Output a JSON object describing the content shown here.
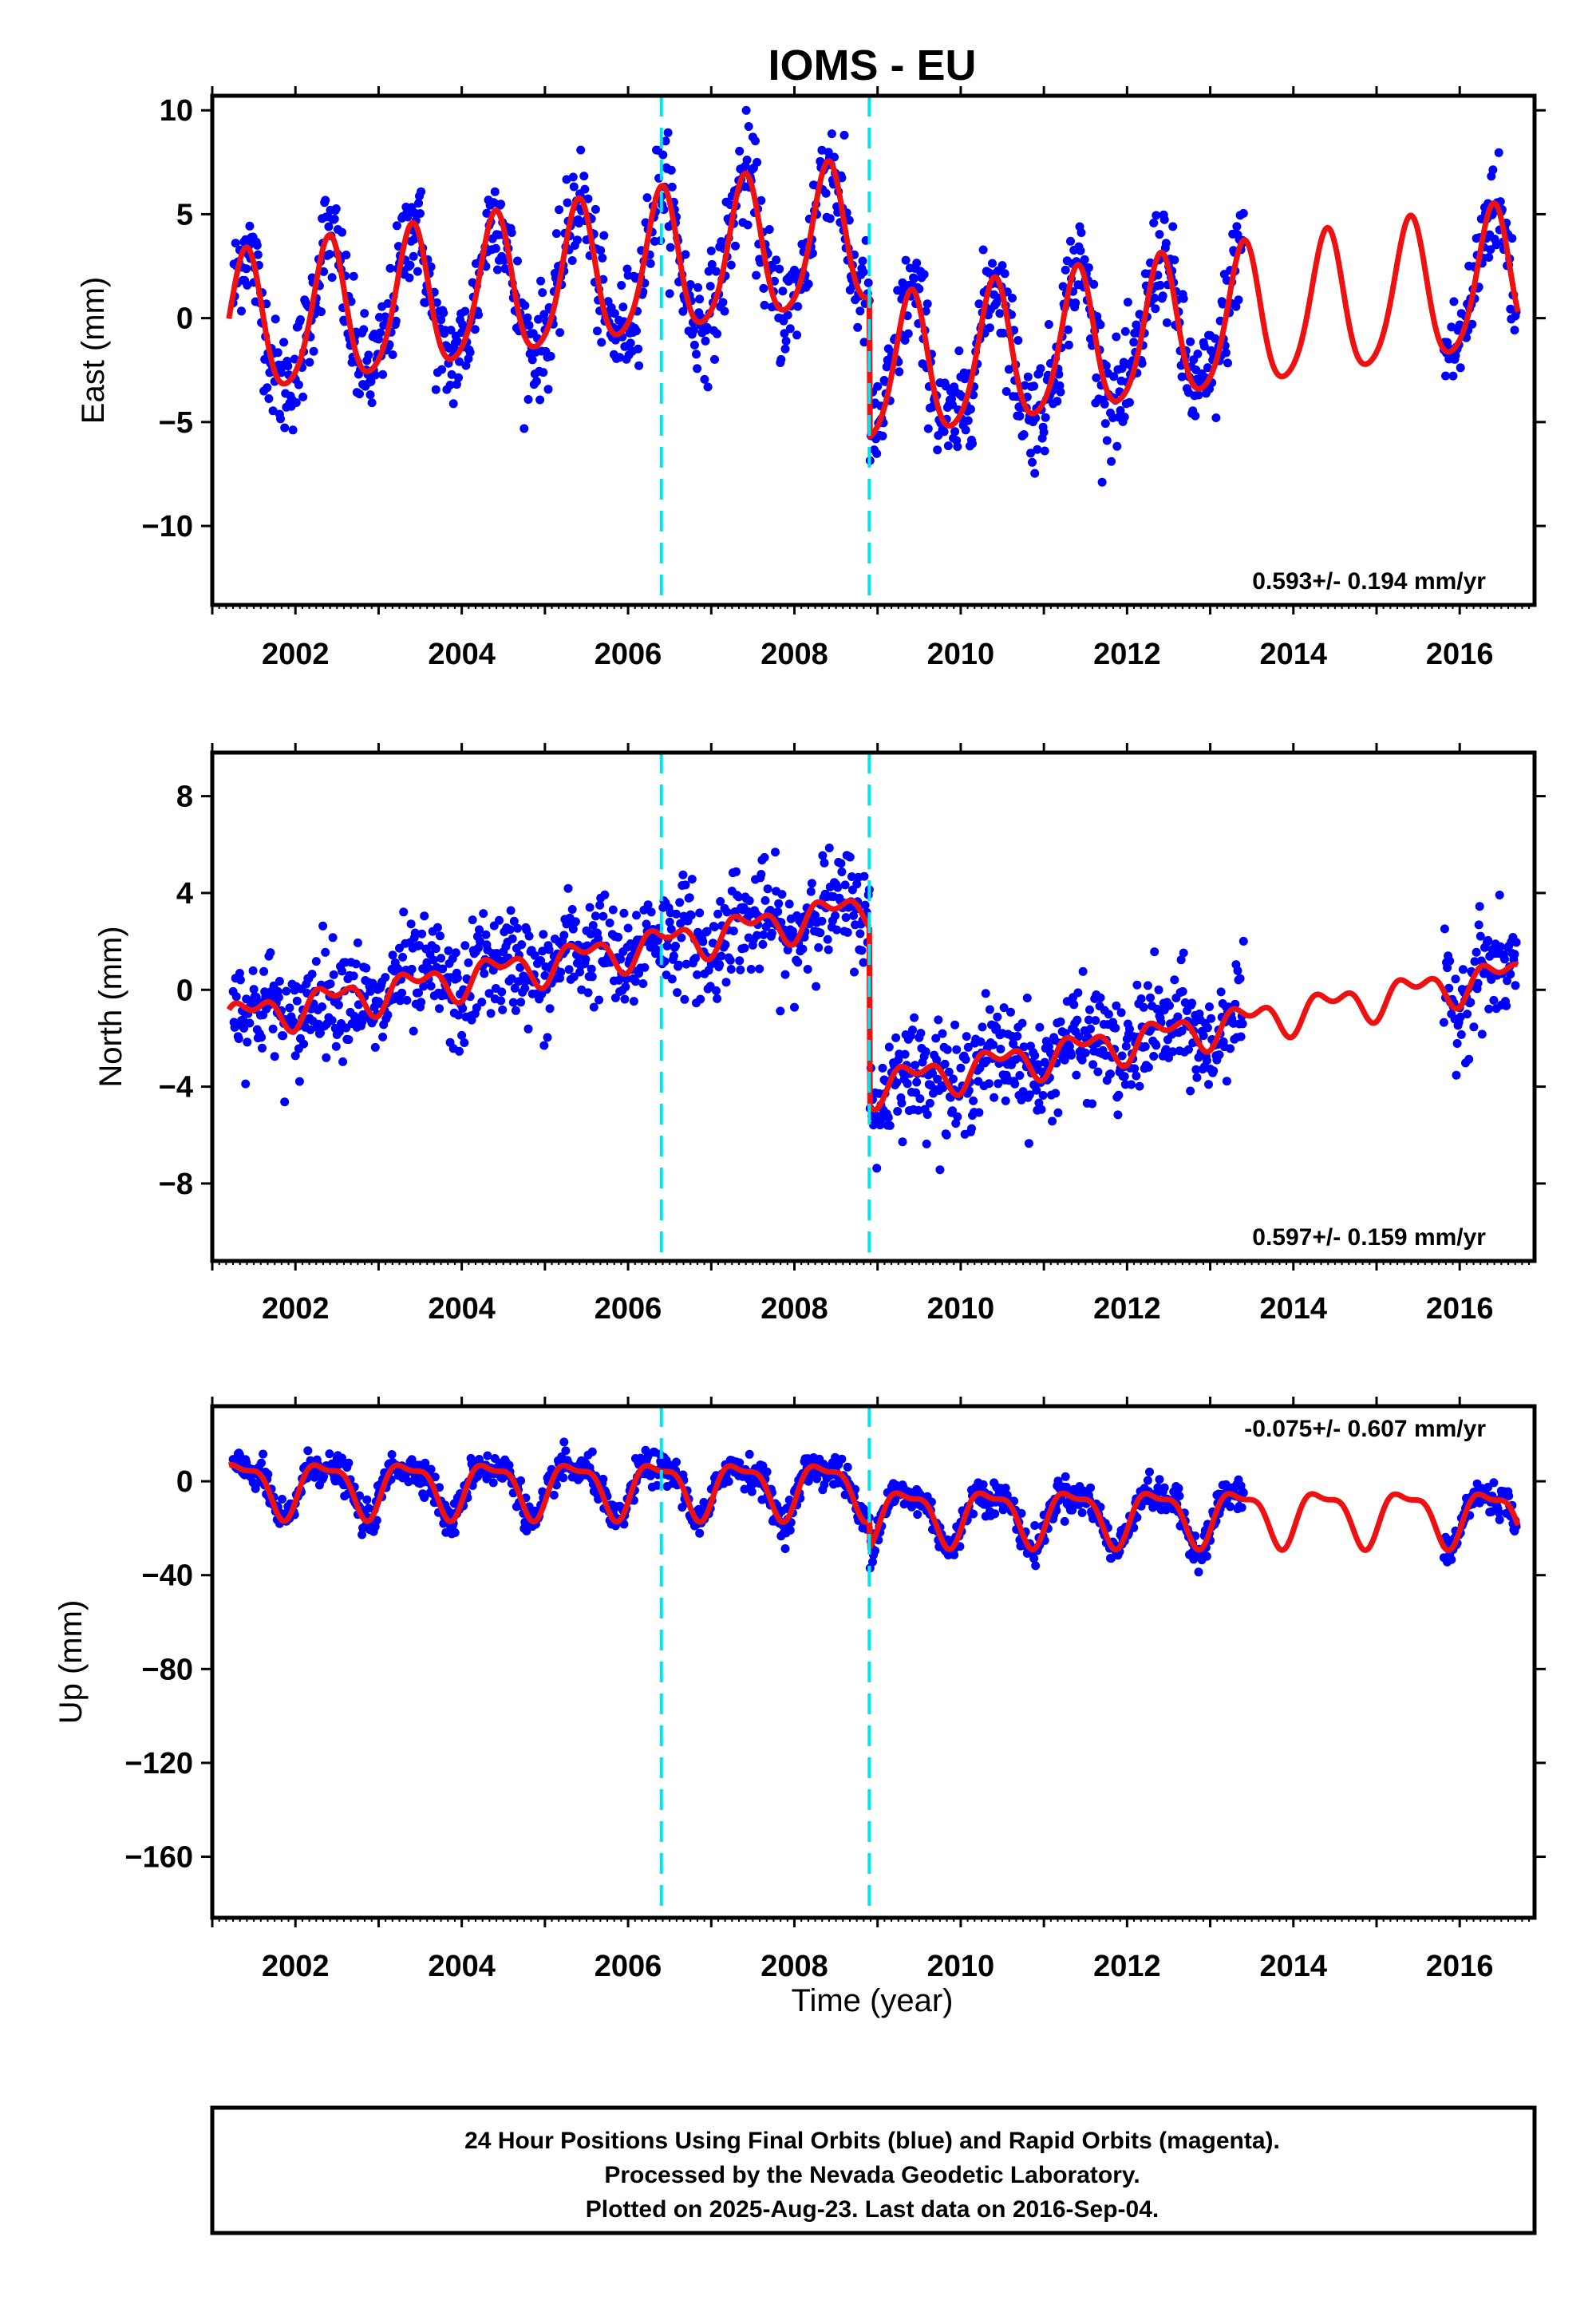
{
  "chart_data": {
    "type": "scatter",
    "title": "IOMS - EU",
    "xlabel": "Time (year)",
    "xlim": [
      2001.0,
      2016.9
    ],
    "x_ticks": [
      2002,
      2004,
      2006,
      2008,
      2010,
      2012,
      2014,
      2016
    ],
    "event_lines_x": [
      2006.4,
      2008.9
    ],
    "colors": {
      "observations": "#0000ff",
      "model": "#ee1111",
      "events": "#00e5ee"
    },
    "data_gap": [
      2013.4,
      2015.8
    ],
    "panels": [
      {
        "key": "east",
        "ylabel": "East (mm)",
        "ylim": [
          -13.8,
          10.7
        ],
        "y_ticks": [
          10,
          5,
          0,
          -5,
          -10
        ],
        "y_tick_labels": [
          "10",
          "5",
          "0",
          "−5",
          "−10"
        ],
        "rate_text": "0.593+/- 0.194 mm/yr",
        "model_segments": [
          {
            "start": 2001.2,
            "end": 2008.9,
            "offset": -0.6,
            "trend": 0.593,
            "t0": 2001.2,
            "amp1": 3.4,
            "phase1": 0.15,
            "amp2": 0.5,
            "phase2": 0.3
          },
          {
            "start": 2008.9,
            "end": 2016.7,
            "offset": -2.8,
            "trend": 0.593,
            "t0": 2008.9,
            "amp1": 3.4,
            "phase1": 0.15,
            "amp2": 0.5,
            "phase2": 0.3
          }
        ],
        "scatter": 1.3
      },
      {
        "key": "north",
        "ylabel": "North (mm)",
        "ylim": [
          -11.2,
          9.8
        ],
        "y_ticks": [
          8,
          4,
          0,
          -4,
          -8
        ],
        "y_tick_labels": [
          "8",
          "4",
          "0",
          "−4",
          "−8"
        ],
        "rate_text": "0.597+/- 0.159 mm/yr",
        "model_segments": [
          {
            "start": 2001.2,
            "end": 2008.9,
            "offset": -1.2,
            "trend": 0.597,
            "t0": 2001.2,
            "amp1": 0.6,
            "phase1": 0.2,
            "amp2": 0.4,
            "phase2": 0.1
          },
          {
            "start": 2008.9,
            "end": 2016.7,
            "offset": -4.0,
            "trend": 0.597,
            "t0": 2008.9,
            "amp1": 0.6,
            "phase1": 0.2,
            "amp2": 0.4,
            "phase2": 0.1
          }
        ],
        "scatter": 1.1
      },
      {
        "key": "up",
        "ylabel": "Up (mm)",
        "ylim": [
          -186,
          32
        ],
        "y_ticks": [
          0,
          -40,
          -80,
          -120,
          -160
        ],
        "y_tick_labels": [
          "0",
          "−40",
          "−80",
          "−120",
          "−160"
        ],
        "rate_text": "-0.075+/- 0.607 mm/yr",
        "model_segments": [
          {
            "start": 2001.2,
            "end": 2008.9,
            "offset": -2.0,
            "trend": -0.075,
            "t0": 2001.2,
            "amp1": 11.0,
            "phase1": 0.1,
            "amp2": 4.0,
            "phase2": 0.0
          },
          {
            "start": 2008.9,
            "end": 2016.7,
            "offset": -14.0,
            "trend": -0.075,
            "t0": 2008.9,
            "amp1": 11.0,
            "phase1": 0.1,
            "amp2": 4.0,
            "phase2": 0.0
          }
        ],
        "scatter": 3.5
      }
    ]
  },
  "footer": {
    "line1": "24 Hour Positions Using Final Orbits (blue) and Rapid Orbits (magenta).",
    "line2": "Processed by the Nevada Geodetic Laboratory.",
    "line3": "Plotted on 2025-Aug-23. Last data on 2016-Sep-04."
  }
}
